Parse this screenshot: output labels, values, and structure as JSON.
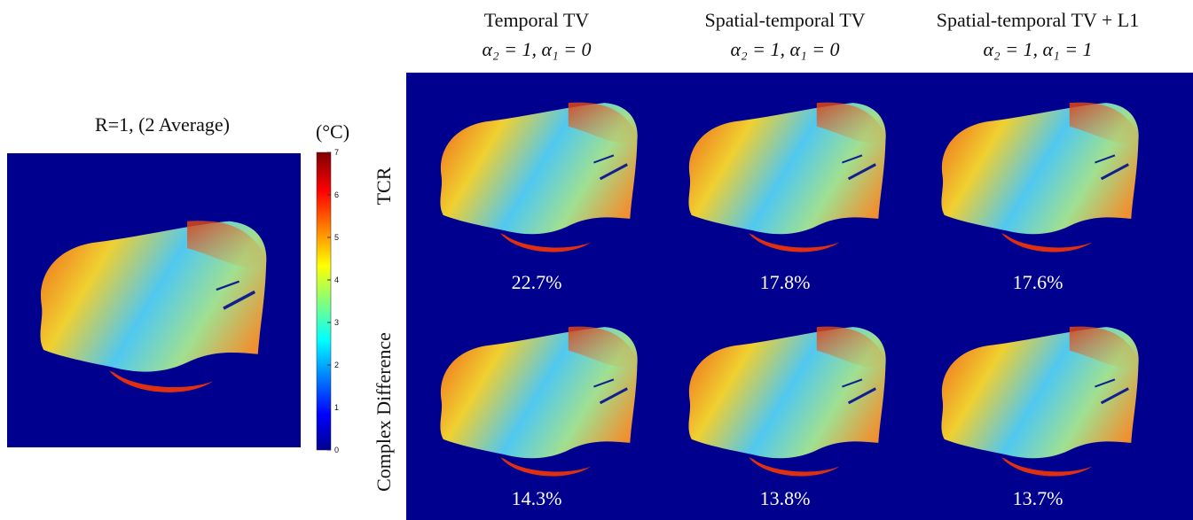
{
  "reference": {
    "title": "R=1, (2 Average)"
  },
  "colorbar": {
    "unit": "(°C)",
    "ticks": [
      0,
      1,
      2,
      3,
      4,
      5,
      6,
      7
    ]
  },
  "columns": [
    {
      "title": "Temporal TV",
      "params": "α₂ = 1, α₁ = 0"
    },
    {
      "title": "Spatial-temporal TV",
      "params": "α₂ = 1, α₁ = 0"
    },
    {
      "title": "Spatial-temporal TV + L1",
      "params": "α₂ = 1, α₁ = 1"
    }
  ],
  "rows": [
    {
      "label": "TCR",
      "errors": [
        "22.7%",
        "17.8%",
        "17.6%"
      ]
    },
    {
      "label": "Complex Difference",
      "errors": [
        "14.3%",
        "13.8%",
        "13.7%"
      ]
    }
  ]
}
